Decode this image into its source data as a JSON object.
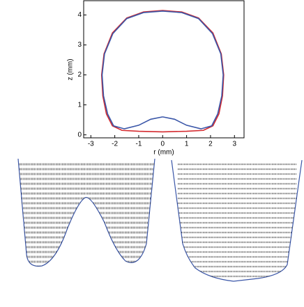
{
  "chart_data": {
    "type": "line",
    "xlabel": "r (mm)",
    "ylabel": "z (mm)",
    "xlim": [
      -3.3,
      3.4
    ],
    "ylim": [
      -0.1,
      4.5
    ],
    "xticks": [
      -3,
      -2,
      -1,
      0,
      1,
      2,
      3
    ],
    "yticks": [
      0,
      1,
      2,
      3,
      4
    ],
    "series": [
      {
        "color": "#d42a2f",
        "x": [
          0,
          1,
          1.7,
          2.1,
          2.35,
          2.5,
          2.55,
          2.45,
          2.1,
          1.5,
          0.8,
          0,
          -0.8,
          -1.5,
          -2.1,
          -2.45,
          -2.55,
          -2.5,
          -2.35,
          -2.1,
          -1.7,
          -1,
          0
        ],
        "values": [
          0.1,
          0.12,
          0.15,
          0.3,
          0.7,
          1.3,
          2.0,
          2.7,
          3.4,
          3.9,
          4.1,
          4.15,
          4.1,
          3.9,
          3.4,
          2.7,
          2.0,
          1.3,
          0.7,
          0.3,
          0.15,
          0.12,
          0.1
        ]
      },
      {
        "color": "#3a56a8",
        "x": [
          0,
          0.5,
          1,
          1.6,
          2.05,
          2.3,
          2.47,
          2.53,
          2.43,
          2.08,
          1.5,
          0.8,
          0,
          -0.8,
          -1.5,
          -2.08,
          -2.43,
          -2.53,
          -2.47,
          -2.3,
          -2.05,
          -1.6,
          -1,
          -0.5,
          0
        ],
        "values": [
          0.6,
          0.52,
          0.32,
          0.2,
          0.3,
          0.7,
          1.3,
          2.0,
          2.7,
          3.38,
          3.88,
          4.08,
          4.13,
          4.08,
          3.88,
          3.38,
          2.7,
          2.0,
          1.3,
          0.7,
          0.3,
          0.2,
          0.32,
          0.52,
          0.6
        ]
      }
    ]
  }
}
